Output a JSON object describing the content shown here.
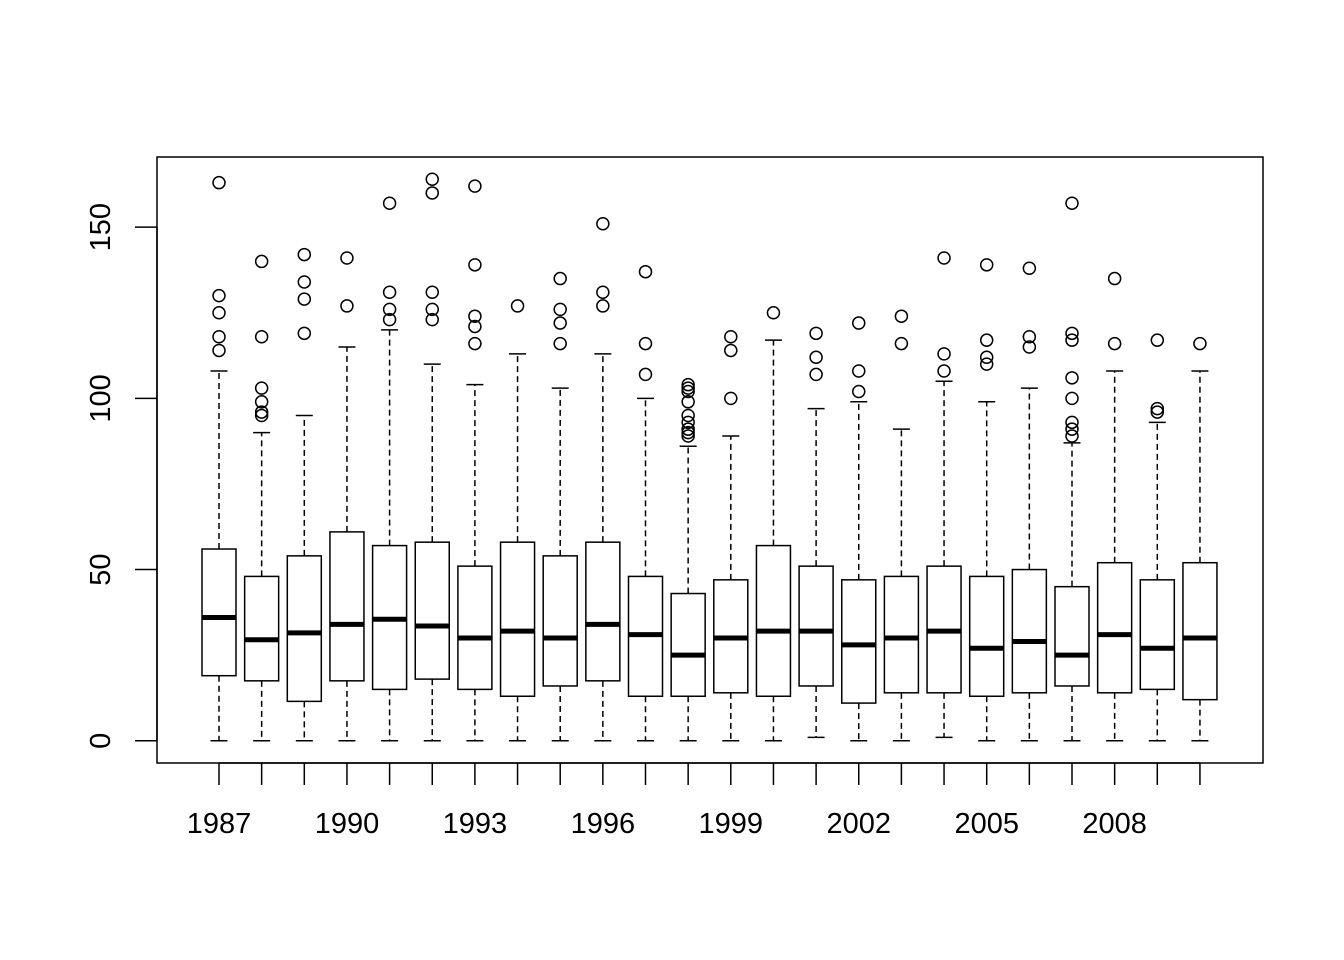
{
  "chart_data": {
    "type": "box",
    "title": "",
    "xlabel": "",
    "ylabel": "",
    "categories": [
      "1987",
      "1988",
      "1989",
      "1990",
      "1991",
      "1992",
      "1993",
      "1994",
      "1995",
      "1996",
      "1997",
      "1998",
      "1999",
      "2000",
      "2001",
      "2002",
      "2003",
      "2004",
      "2005",
      "2006",
      "2007",
      "2008",
      "2009",
      "2010"
    ],
    "x_tick_labels": [
      "1987",
      "1990",
      "1993",
      "1996",
      "1999",
      "2002",
      "2005",
      "2008"
    ],
    "y_ticks": [
      0,
      50,
      100,
      150
    ],
    "ylim": [
      -6.5,
      170.5
    ],
    "grid": false,
    "legend": "none",
    "boxes": [
      {
        "category": "1987",
        "low": 0,
        "q1": 19,
        "median": 36,
        "q3": 56,
        "high": 108,
        "outliers": [
          114,
          118,
          125,
          130,
          163
        ]
      },
      {
        "category": "1988",
        "low": 0,
        "q1": 17.5,
        "median": 29.5,
        "q3": 48,
        "high": 90,
        "outliers": [
          95,
          96,
          99,
          103,
          118,
          140
        ]
      },
      {
        "category": "1989",
        "low": 0,
        "q1": 11.5,
        "median": 31.5,
        "q3": 54,
        "high": 95,
        "outliers": [
          119,
          129,
          134,
          142
        ]
      },
      {
        "category": "1990",
        "low": 0,
        "q1": 17.5,
        "median": 34,
        "q3": 61,
        "high": 115,
        "outliers": [
          127,
          141
        ]
      },
      {
        "category": "1991",
        "low": 0,
        "q1": 15,
        "median": 35.5,
        "q3": 57,
        "high": 120,
        "outliers": [
          123,
          126,
          131,
          157
        ]
      },
      {
        "category": "1992",
        "low": 0,
        "q1": 18,
        "median": 33.5,
        "q3": 58,
        "high": 110,
        "outliers": [
          123,
          126,
          131,
          160,
          164
        ]
      },
      {
        "category": "1993",
        "low": 0,
        "q1": 15,
        "median": 30,
        "q3": 51,
        "high": 104,
        "outliers": [
          116,
          121,
          124,
          139,
          162
        ]
      },
      {
        "category": "1994",
        "low": 0,
        "q1": 13,
        "median": 32,
        "q3": 58,
        "high": 113,
        "outliers": [
          127
        ]
      },
      {
        "category": "1995",
        "low": 0,
        "q1": 16,
        "median": 30,
        "q3": 54,
        "high": 103,
        "outliers": [
          116,
          122,
          126,
          135
        ]
      },
      {
        "category": "1996",
        "low": 0,
        "q1": 17.5,
        "median": 34,
        "q3": 58,
        "high": 113,
        "outliers": [
          127,
          131,
          151
        ]
      },
      {
        "category": "1997",
        "low": 0,
        "q1": 13,
        "median": 31,
        "q3": 48,
        "high": 100,
        "outliers": [
          107,
          116,
          137
        ]
      },
      {
        "category": "1998",
        "low": 0,
        "q1": 13,
        "median": 25,
        "q3": 43,
        "high": 86,
        "outliers": [
          89,
          90,
          91,
          93,
          95,
          99,
          102,
          103,
          104
        ]
      },
      {
        "category": "1999",
        "low": 0,
        "q1": 14,
        "median": 30,
        "q3": 47,
        "high": 89,
        "outliers": [
          100,
          114,
          118
        ]
      },
      {
        "category": "2000",
        "low": 0,
        "q1": 13,
        "median": 32,
        "q3": 57,
        "high": 117,
        "outliers": [
          125
        ]
      },
      {
        "category": "2001",
        "low": 1,
        "q1": 16,
        "median": 32,
        "q3": 51,
        "high": 97,
        "outliers": [
          107,
          112,
          119
        ]
      },
      {
        "category": "2002",
        "low": 0,
        "q1": 11,
        "median": 28,
        "q3": 47,
        "high": 99,
        "outliers": [
          102,
          108,
          122
        ]
      },
      {
        "category": "2003",
        "low": 0,
        "q1": 14,
        "median": 30,
        "q3": 48,
        "high": 91,
        "outliers": [
          116,
          124
        ]
      },
      {
        "category": "2004",
        "low": 1,
        "q1": 14,
        "median": 32,
        "q3": 51,
        "high": 105,
        "outliers": [
          108,
          113,
          141
        ]
      },
      {
        "category": "2005",
        "low": 0,
        "q1": 13,
        "median": 27,
        "q3": 48,
        "high": 99,
        "outliers": [
          110,
          112,
          117,
          139
        ]
      },
      {
        "category": "2006",
        "low": 0,
        "q1": 14,
        "median": 29,
        "q3": 50,
        "high": 103,
        "outliers": [
          115,
          118,
          138
        ]
      },
      {
        "category": "2007",
        "low": 0,
        "q1": 16,
        "median": 25,
        "q3": 45,
        "high": 87,
        "outliers": [
          89,
          91,
          93,
          100,
          106,
          117,
          119,
          157
        ]
      },
      {
        "category": "2008",
        "low": 0,
        "q1": 14,
        "median": 31,
        "q3": 52,
        "high": 108,
        "outliers": [
          116,
          135
        ]
      },
      {
        "category": "2009",
        "low": 0,
        "q1": 15,
        "median": 27,
        "q3": 47,
        "high": 93,
        "outliers": [
          96,
          97,
          117
        ]
      },
      {
        "category": "2010",
        "low": 0,
        "q1": 12,
        "median": 30,
        "q3": 52,
        "high": 108,
        "outliers": [
          116
        ]
      }
    ]
  }
}
